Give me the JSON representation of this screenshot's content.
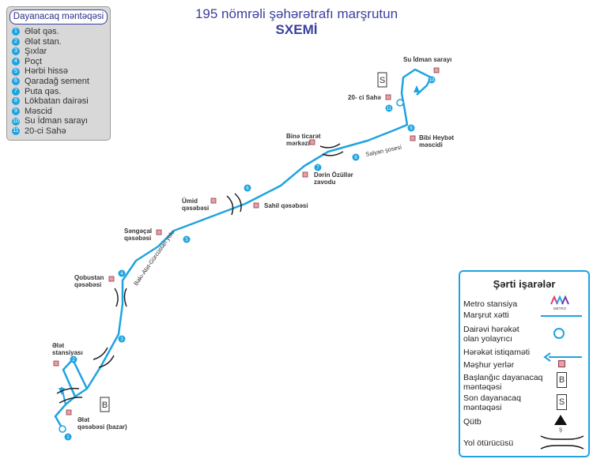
{
  "title": {
    "line1": "195 nömrəli şəhərətrafı marşrutun",
    "line2": "SXEMİ"
  },
  "stops_panel": {
    "title": "Dayanacaq məntəqəsi",
    "stops": [
      {
        "num": "1",
        "name": "Ələt qəs."
      },
      {
        "num": "2",
        "name": "Ələt stan."
      },
      {
        "num": "3",
        "name": "Şıxlar"
      },
      {
        "num": "4",
        "name": "Poçt"
      },
      {
        "num": "5",
        "name": "Hərbi hissə"
      },
      {
        "num": "6",
        "name": "Qaradağ sement"
      },
      {
        "num": "7",
        "name": "Puta qəs."
      },
      {
        "num": "8",
        "name": "Lökbatan dairəsi"
      },
      {
        "num": "9",
        "name": "Məscid"
      },
      {
        "num": "10",
        "name": "Su İdman sarayı"
      },
      {
        "num": "11",
        "name": "20-ci Sahə"
      }
    ]
  },
  "map_labels": {
    "su_idman": "Su İdman sarayı",
    "ci_sahe": "20- ci Sahə",
    "bibi_heybet_1": "Bibi Heybət",
    "bibi_heybet_2": "məscidi",
    "bine_1": "Binə ticarət",
    "bine_2": "mərkəzi",
    "salyan": "Salyan şosesi",
    "derin_1": "Dərin Özüllər",
    "derin_2": "zavodu",
    "umid_1": "Ümid",
    "umid_2": "qəsəbəsi",
    "sahil": "Sahil qəsəbəsi",
    "sengecal_1": "Səngəçal",
    "sengecal_2": "qəsəbəsi",
    "road": "Bakı-Alət-Gürcüstan yolu",
    "qobustan_1": "Qobustan",
    "qobustan_2": "qəsəbəsi",
    "elet_st_1": "Ələt",
    "elet_st_2": "stansiyası",
    "elet_q_1": "Ələt",
    "elet_q_2": "qəsəbəsi (bazar)",
    "marker_b": "B",
    "marker_s": "S",
    "metro_word": "METRO"
  },
  "legend": {
    "title": "Şərti işarələr",
    "metro": "Metro stansiya",
    "route": "Marşrut xətti",
    "roundabout_1": "Dairəvi hərəkət",
    "roundabout_2": "olan yolayrıcı",
    "direction": "Hərəkət istiqaməti",
    "landmarks": "Məşhur yerlər",
    "start_1": "Başlanğıc dayanacaq",
    "start_2": "məntəqəsi",
    "end_1": "Son dayanacaq",
    "end_2": "məntəqəsi",
    "north": "Qütb",
    "overpass": "Yol ötürücüsü",
    "north_letter": "Ş"
  },
  "colors": {
    "route": "#1fa3e0",
    "title": "#3a3f9e",
    "landmark_fill": "#e8a0a8",
    "landmark_stroke": "#8a3a44"
  }
}
